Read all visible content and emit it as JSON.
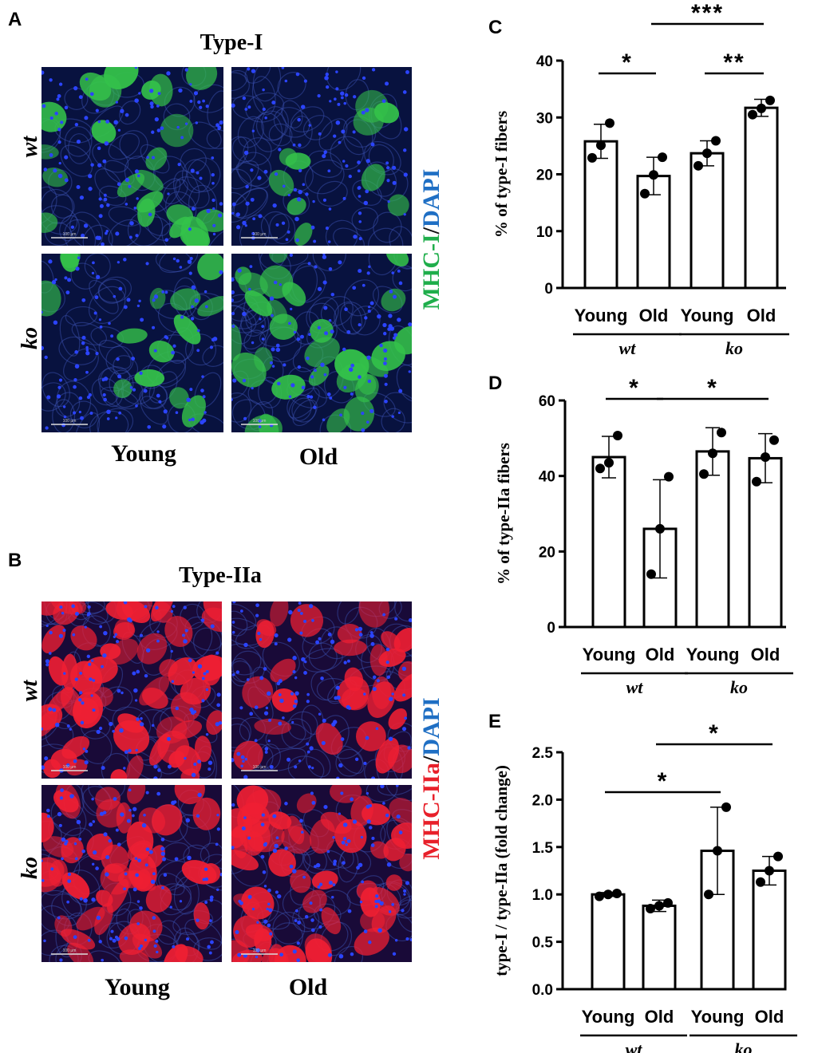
{
  "panels": {
    "A": {
      "letter": "A",
      "title": "Type-I",
      "row_labels": [
        "wt",
        "ko"
      ],
      "col_labels": [
        "Young",
        "Old"
      ],
      "stain_parts": [
        "MHC-I",
        "/",
        "DAPI"
      ],
      "scale_bar": "100 μm",
      "colors": {
        "stain": "#1fae4b",
        "dapi": "#1f6fc4",
        "fiber": "#34c24a",
        "background": "#08123f",
        "nuclei": "#2b44ff"
      }
    },
    "B": {
      "letter": "B",
      "title": "Type-IIa",
      "row_labels": [
        "wt",
        "ko"
      ],
      "col_labels": [
        "Young",
        "Old"
      ],
      "stain_parts": [
        "MHC-IIa",
        "/",
        "DAPI"
      ],
      "scale_bar": "100 μm",
      "colors": {
        "stain": "#e8202a",
        "dapi": "#1f6fc4",
        "fiber": "#ef1f33",
        "background": "#190a38",
        "nuclei": "#2b44ff"
      }
    }
  },
  "chart_data": [
    {
      "panel": "C",
      "type": "bar",
      "ylabel": "% of type-I fibers",
      "ylim": [
        0,
        40
      ],
      "yticks": [
        0,
        10,
        20,
        30,
        40
      ],
      "categories": [
        "Young",
        "Old",
        "Young",
        "Old"
      ],
      "groups": [
        "wt",
        "ko"
      ],
      "values": [
        25.8,
        19.7,
        23.7,
        31.7
      ],
      "errors": [
        3.0,
        3.3,
        2.2,
        1.5
      ],
      "points": [
        [
          22.9,
          25.1,
          29.0
        ],
        [
          16.6,
          19.9,
          23.0
        ],
        [
          21.5,
          23.7,
          25.9
        ],
        [
          30.5,
          31.6,
          33.0
        ]
      ],
      "significance": [
        {
          "bars": [
            0,
            1
          ],
          "label": "*"
        },
        {
          "bars": [
            2,
            3
          ],
          "label": "**"
        },
        {
          "bars": [
            1,
            3
          ],
          "label": "***"
        }
      ]
    },
    {
      "panel": "D",
      "type": "bar",
      "ylabel": "% of type-IIa fibers",
      "ylim": [
        0,
        60
      ],
      "yticks": [
        0,
        20,
        40,
        60
      ],
      "categories": [
        "Young",
        "Old",
        "Young",
        "Old"
      ],
      "groups": [
        "wt",
        "ko"
      ],
      "values": [
        45,
        26,
        46.5,
        44.7
      ],
      "errors": [
        5.5,
        13,
        6.3,
        6.5
      ],
      "points": [
        [
          42,
          43.5,
          50.7
        ],
        [
          14,
          26,
          39.8
        ],
        [
          40.5,
          46,
          51.5
        ],
        [
          38.5,
          45,
          49.5
        ]
      ],
      "significance": [
        {
          "bars": [
            0,
            1
          ],
          "label": "*"
        },
        {
          "bars": [
            1,
            3
          ],
          "label": "*"
        }
      ]
    },
    {
      "panel": "E",
      "type": "bar",
      "ylabel": "type-I / type-IIa (fold change)",
      "ylim": [
        0,
        2.5
      ],
      "yticks": [
        "0.0",
        "0.5",
        "1.0",
        "1.5",
        "2.0",
        "2.5"
      ],
      "categories": [
        "Young",
        "Old",
        "Young",
        "Old"
      ],
      "groups": [
        "wt",
        "ko"
      ],
      "values": [
        1.0,
        0.88,
        1.46,
        1.25
      ],
      "errors": [
        0.02,
        0.06,
        0.46,
        0.15
      ],
      "points": [
        [
          0.98,
          1.0,
          1.01
        ],
        [
          0.85,
          0.88,
          0.91
        ],
        [
          1.0,
          1.46,
          1.92
        ],
        [
          1.13,
          1.25,
          1.4
        ]
      ],
      "significance": [
        {
          "bars": [
            0,
            2
          ],
          "label": "*"
        },
        {
          "bars": [
            1,
            3
          ],
          "label": "*"
        }
      ]
    }
  ]
}
